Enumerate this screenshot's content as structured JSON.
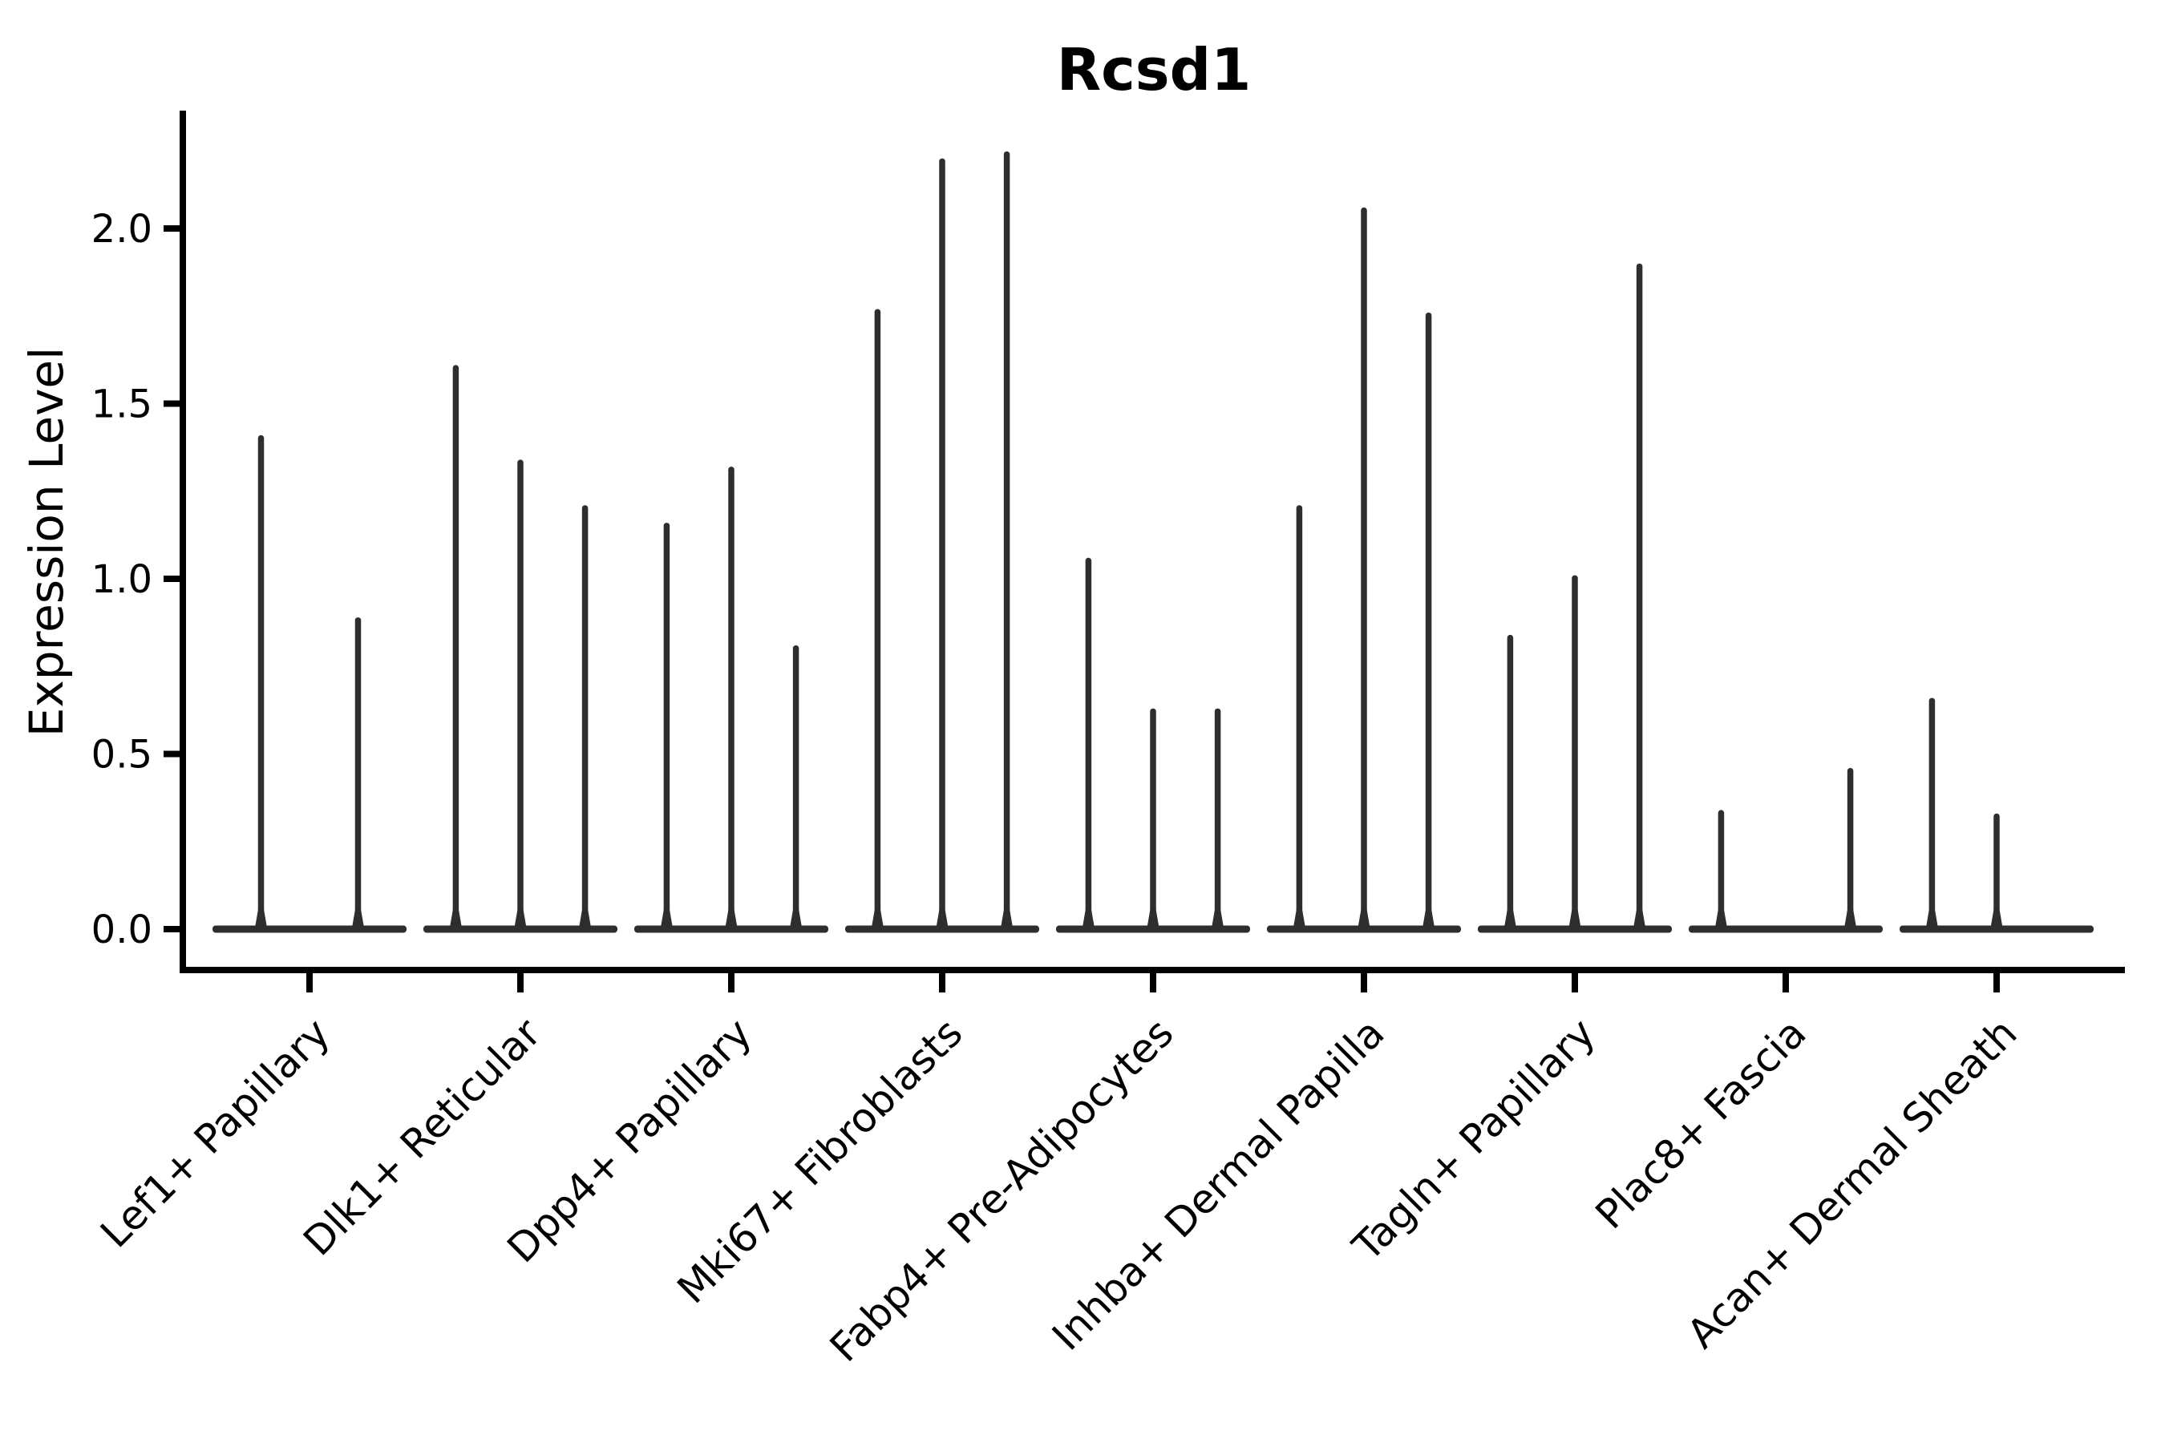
{
  "chart_data": {
    "type": "violin",
    "title": "Rcsd1",
    "ylabel": "Expression Level",
    "xlabel": "",
    "yticks": [
      0.0,
      0.5,
      1.0,
      1.5,
      2.0
    ],
    "ylim": [
      -0.12,
      2.33
    ],
    "grid": false,
    "legend": "none",
    "description": "Violin plot of Rcsd1 expression; violins are near-zero-width spikes rising from flat bases at 0, up to the max expression value. Groups 2-9 contain 3 violin positions (some empty); group 1 contains 2.",
    "categories": [
      "Lef1+ Papillary",
      "Dlk1+ Reticular",
      "Dpp4+ Papillary",
      "Mki67+ Fibroblasts",
      "Fabp4+ Pre-Adipocytes",
      "Inhba+ Dermal Papilla",
      "Tagln+ Papillary",
      "Plac8+ Fascia",
      "Acan+ Dermal Sheath"
    ],
    "groups": [
      {
        "label": "Lef1+ Papillary",
        "violins": [
          {
            "pos": 0.25,
            "max": 1.41
          },
          {
            "pos": 0.75,
            "max": 0.89
          }
        ]
      },
      {
        "label": "Dlk1+ Reticular",
        "violins": [
          {
            "pos": 0.167,
            "max": 1.61
          },
          {
            "pos": 0.5,
            "max": 1.34
          },
          {
            "pos": 0.833,
            "max": 1.21
          }
        ]
      },
      {
        "label": "Dpp4+ Papillary",
        "violins": [
          {
            "pos": 0.167,
            "max": 1.16
          },
          {
            "pos": 0.5,
            "max": 1.32
          },
          {
            "pos": 0.833,
            "max": 0.81
          }
        ]
      },
      {
        "label": "Mki67+ Fibroblasts",
        "violins": [
          {
            "pos": 0.167,
            "max": 1.77
          },
          {
            "pos": 0.5,
            "max": 2.2
          },
          {
            "pos": 0.833,
            "max": 2.22
          }
        ]
      },
      {
        "label": "Fabp4+ Pre-Adipocytes",
        "violins": [
          {
            "pos": 0.167,
            "max": 1.06
          },
          {
            "pos": 0.5,
            "max": 0.63
          },
          {
            "pos": 0.833,
            "max": 0.63
          }
        ]
      },
      {
        "label": "Inhba+ Dermal Papilla",
        "violins": [
          {
            "pos": 0.167,
            "max": 1.21
          },
          {
            "pos": 0.5,
            "max": 2.06
          },
          {
            "pos": 0.833,
            "max": 1.76
          }
        ]
      },
      {
        "label": "Tagln+ Papillary",
        "violins": [
          {
            "pos": 0.167,
            "max": 0.84
          },
          {
            "pos": 0.5,
            "max": 1.01
          },
          {
            "pos": 0.833,
            "max": 1.9
          }
        ]
      },
      {
        "label": "Plac8+ Fascia",
        "violins": [
          {
            "pos": 0.167,
            "max": 0.34
          },
          {
            "pos": 0.833,
            "max": 0.46
          }
        ]
      },
      {
        "label": "Acan+ Dermal Sheath",
        "violins": [
          {
            "pos": 0.167,
            "max": 0.66
          },
          {
            "pos": 0.5,
            "max": 0.33
          }
        ]
      }
    ],
    "colors": {
      "violin_stroke": "#2e2e2e",
      "axis": "#000000",
      "background": "#ffffff"
    }
  }
}
